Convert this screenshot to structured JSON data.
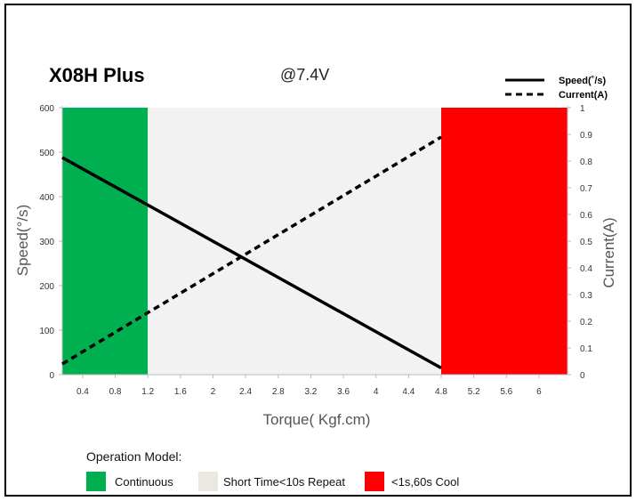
{
  "chart_data": {
    "type": "line",
    "title": "X08H Plus",
    "subtitle": "@7.4V",
    "xlabel": "Torque( Kgf.cm)",
    "ylabel_left": "Speed(°/s)",
    "ylabel_right": "Current(A)",
    "xlim": [
      0.15,
      6.35
    ],
    "ylim_left": [
      0,
      600
    ],
    "ylim_right": [
      0,
      1
    ],
    "x_ticks": [
      "0.4",
      "0.8",
      "1.2",
      "1.6",
      "2",
      "2.4",
      "2.8",
      "3.2",
      "3.6",
      "4",
      "4.4",
      "4.8",
      "5.2",
      "5.6",
      "6"
    ],
    "y_ticks_left": [
      "0",
      "100",
      "200",
      "300",
      "400",
      "500",
      "600"
    ],
    "y_ticks_right": [
      "0",
      "0.1",
      "0.2",
      "0.3",
      "0.4",
      "0.5",
      "0.6",
      "0.7",
      "0.8",
      "0.9",
      "1"
    ],
    "series": [
      {
        "name": "Speed(˚/s)",
        "axis": "left",
        "style": "solid",
        "x": [
          0.15,
          4.8
        ],
        "y": [
          488,
          15
        ]
      },
      {
        "name": "Current(A)",
        "axis": "right",
        "style": "dashed",
        "x": [
          0.15,
          4.8
        ],
        "y": [
          0.04,
          0.89
        ]
      }
    ],
    "zones": [
      {
        "label": "Continuous",
        "x": [
          0.15,
          1.2
        ],
        "color": "#00b050"
      },
      {
        "label": "Short Time<10s Repeat",
        "x": [
          1.2,
          4.8
        ],
        "color": "#f2f2f2"
      },
      {
        "label": "<1s,60s Cool",
        "x": [
          4.8,
          6.35
        ],
        "color": "#ff0000"
      }
    ],
    "zone_legend_title": "Operation Model:",
    "legend_position": "top-right",
    "grid": false
  }
}
